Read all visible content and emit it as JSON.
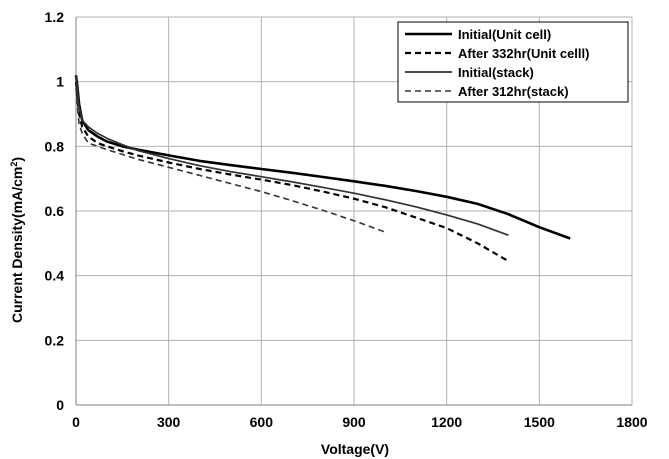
{
  "chart_data": {
    "type": "line",
    "title": "",
    "xlabel": "Voltage(V)",
    "ylabel": "Current Density(mA/cm",
    "ylabel_sup": "2",
    "ylabel_end": ")",
    "xlim": [
      0,
      1800
    ],
    "ylim": [
      0,
      1.2
    ],
    "xticks": [
      0,
      300,
      600,
      900,
      1200,
      1500,
      1800
    ],
    "xtick_labels": [
      "0",
      "300",
      "600",
      "900",
      "1200",
      "1500",
      "1800"
    ],
    "yticks": [
      0,
      0.2,
      0.4,
      0.6,
      0.8,
      1.0,
      1.2
    ],
    "ytick_labels": [
      "0",
      "0.2",
      "0.4",
      "0.6",
      "0.8",
      "1",
      "1.2"
    ],
    "grid": true,
    "legend_position": "top-right",
    "series": [
      {
        "name": "Initial(Unit cell)",
        "style": "solid-thick",
        "color": "#000000",
        "x": [
          0,
          5,
          10,
          20,
          40,
          70,
          100,
          150,
          200,
          300,
          400,
          500,
          600,
          700,
          800,
          900,
          1000,
          1100,
          1200,
          1300,
          1400,
          1500,
          1600
        ],
        "y": [
          1.02,
          0.98,
          0.93,
          0.88,
          0.85,
          0.83,
          0.815,
          0.8,
          0.79,
          0.772,
          0.755,
          0.742,
          0.73,
          0.718,
          0.705,
          0.692,
          0.678,
          0.662,
          0.644,
          0.622,
          0.59,
          0.55,
          0.515
        ]
      },
      {
        "name": "After 332hr(Unit celll)",
        "style": "dashed-thick",
        "color": "#000000",
        "x": [
          0,
          5,
          10,
          20,
          40,
          70,
          100,
          150,
          200,
          300,
          400,
          500,
          600,
          700,
          800,
          900,
          1000,
          1100,
          1200,
          1300,
          1400
        ],
        "y": [
          1.0,
          0.95,
          0.9,
          0.86,
          0.83,
          0.81,
          0.8,
          0.785,
          0.772,
          0.75,
          0.73,
          0.713,
          0.697,
          0.68,
          0.66,
          0.638,
          0.612,
          0.58,
          0.547,
          0.5,
          0.445
        ]
      },
      {
        "name": "Initial(stack)",
        "style": "solid-thin",
        "color": "#333333",
        "x": [
          0,
          5,
          10,
          20,
          40,
          70,
          100,
          150,
          200,
          300,
          400,
          500,
          600,
          700,
          800,
          900,
          1000,
          1100,
          1200,
          1300,
          1400
        ],
        "y": [
          1.02,
          0.97,
          0.92,
          0.88,
          0.86,
          0.84,
          0.825,
          0.805,
          0.787,
          0.762,
          0.74,
          0.722,
          0.706,
          0.69,
          0.673,
          0.655,
          0.635,
          0.613,
          0.588,
          0.56,
          0.525
        ]
      },
      {
        "name": "After 312hr(stack)",
        "style": "dashed-thin",
        "color": "#333333",
        "x": [
          0,
          5,
          10,
          20,
          40,
          70,
          100,
          150,
          200,
          300,
          400,
          500,
          600,
          700,
          800,
          900,
          1000
        ],
        "y": [
          0.98,
          0.92,
          0.87,
          0.84,
          0.81,
          0.8,
          0.79,
          0.775,
          0.76,
          0.735,
          0.71,
          0.685,
          0.66,
          0.632,
          0.602,
          0.57,
          0.535
        ]
      }
    ]
  }
}
